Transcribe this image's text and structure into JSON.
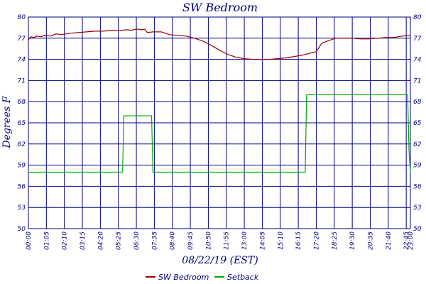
{
  "chart_data": {
    "type": "line",
    "title": "SW Bedroom",
    "xlabel": "08/22/19 (EST)",
    "ylabel": "Degrees F",
    "ylim": [
      50,
      80
    ],
    "xlim": [
      "00:00",
      "23:00"
    ],
    "y_ticks": [
      "50",
      "53",
      "56",
      "59",
      "62",
      "65",
      "68",
      "71",
      "74",
      "77",
      "80"
    ],
    "x_ticks": [
      "00:00",
      "01:05",
      "02:10",
      "03:15",
      "04:20",
      "05:25",
      "06:30",
      "07:35",
      "08:40",
      "09:45",
      "10:50",
      "11:55",
      "13:00",
      "14:05",
      "15:10",
      "16:15",
      "17:20",
      "18:25",
      "19:30",
      "20:35",
      "21:40",
      "22:45",
      "23:00"
    ],
    "grid": true,
    "legend": "bottom",
    "series": [
      {
        "name": "SW Bedroom",
        "color": "#990000",
        "points": [
          [
            "00:00",
            76.8
          ],
          [
            "00:10",
            77.2
          ],
          [
            "00:20",
            77.1
          ],
          [
            "00:30",
            77.3
          ],
          [
            "00:45",
            77.2
          ],
          [
            "01:00",
            77.4
          ],
          [
            "01:20",
            77.3
          ],
          [
            "01:40",
            77.6
          ],
          [
            "02:00",
            77.5
          ],
          [
            "02:30",
            77.7
          ],
          [
            "03:00",
            77.8
          ],
          [
            "03:30",
            77.9
          ],
          [
            "04:00",
            78.0
          ],
          [
            "04:30",
            78.0
          ],
          [
            "05:00",
            78.1
          ],
          [
            "05:30",
            78.1
          ],
          [
            "06:00",
            78.2
          ],
          [
            "06:10",
            78.1
          ],
          [
            "06:30",
            78.3
          ],
          [
            "06:50",
            78.2
          ],
          [
            "07:00",
            78.3
          ],
          [
            "07:10",
            77.8
          ],
          [
            "07:30",
            77.9
          ],
          [
            "08:00",
            77.9
          ],
          [
            "08:30",
            77.5
          ],
          [
            "09:00",
            77.4
          ],
          [
            "09:30",
            77.3
          ],
          [
            "10:00",
            77.0
          ],
          [
            "10:30",
            76.6
          ],
          [
            "11:00",
            76.0
          ],
          [
            "11:30",
            75.3
          ],
          [
            "12:00",
            74.7
          ],
          [
            "12:30",
            74.3
          ],
          [
            "13:00",
            74.1
          ],
          [
            "13:30",
            74.0
          ],
          [
            "14:00",
            74.0
          ],
          [
            "14:30",
            74.0
          ],
          [
            "15:00",
            74.1
          ],
          [
            "15:30",
            74.2
          ],
          [
            "16:00",
            74.4
          ],
          [
            "16:30",
            74.6
          ],
          [
            "17:00",
            74.9
          ],
          [
            "17:20",
            75.1
          ],
          [
            "17:40",
            76.3
          ],
          [
            "18:00",
            76.6
          ],
          [
            "18:30",
            77.0
          ],
          [
            "19:00",
            77.0
          ],
          [
            "19:30",
            77.0
          ],
          [
            "20:00",
            76.9
          ],
          [
            "20:30",
            76.9
          ],
          [
            "21:00",
            77.0
          ],
          [
            "21:30",
            77.1
          ],
          [
            "22:00",
            77.1
          ],
          [
            "22:30",
            77.3
          ],
          [
            "23:00",
            77.4
          ]
        ]
      },
      {
        "name": "Setback",
        "color": "#00aa00",
        "points": [
          [
            "00:00",
            58
          ],
          [
            "05:40",
            58
          ],
          [
            "05:45",
            66
          ],
          [
            "07:25",
            66
          ],
          [
            "07:30",
            58
          ],
          [
            "16:40",
            58
          ],
          [
            "16:45",
            69
          ],
          [
            "22:50",
            69
          ],
          [
            "22:55",
            61
          ],
          [
            "23:00",
            58
          ]
        ]
      }
    ]
  }
}
